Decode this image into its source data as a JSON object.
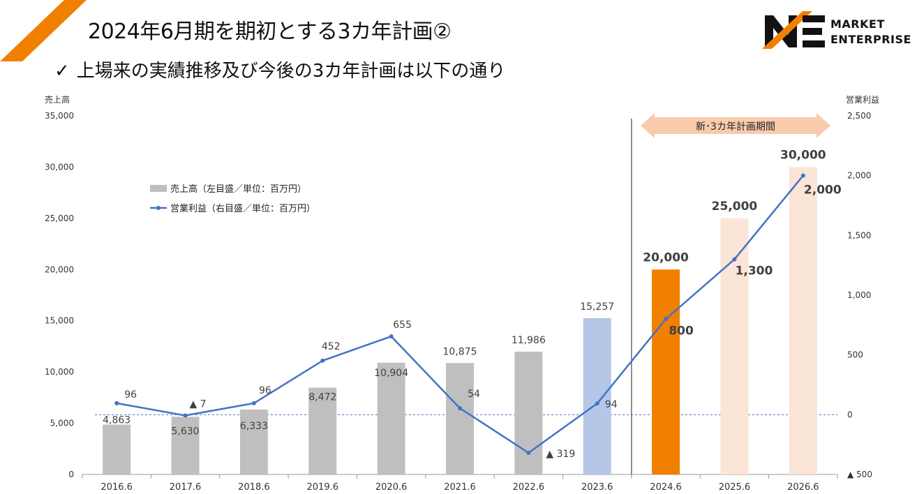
{
  "header": {
    "title": "2024年6月期を期初とする3カ年計画②",
    "subtitle_check": "✓",
    "subtitle": "上場来の実績推移及び今後の3カ年計画は以下の通り"
  },
  "logo": {
    "line1": "MARKET",
    "line2": "ENTERPRISE",
    "icon": "market-enterprise-logo",
    "color_orange": "#f28000",
    "color_black": "#111111"
  },
  "corner_stripe": {
    "color": "#f28000"
  },
  "chart_data": {
    "type": "bar+line",
    "categories": [
      "2016.6",
      "2017.6",
      "2018.6",
      "2019.6",
      "2020.6",
      "2021.6",
      "2022.6",
      "2023.6",
      "2024.6",
      "2025.6",
      "2026.6"
    ],
    "left_axis": {
      "title": "売上高",
      "ylim": [
        0,
        35000
      ],
      "ticks": [
        0,
        5000,
        10000,
        15000,
        20000,
        25000,
        30000,
        35000
      ],
      "tick_labels": [
        "0",
        "5,000",
        "10,000",
        "15,000",
        "20,000",
        "25,000",
        "30,000",
        "35,000"
      ]
    },
    "right_axis": {
      "title": "営業利益",
      "ylim": [
        -500,
        2500
      ],
      "ticks": [
        -500,
        0,
        500,
        1000,
        1500,
        2000,
        2500
      ],
      "tick_labels": [
        "▲ 500",
        "0",
        "500",
        "1,000",
        "1,500",
        "2,000",
        "2,500"
      ]
    },
    "series": [
      {
        "name": "売上高（左目盛／単位：百万円）",
        "kind": "bar",
        "axis": "left",
        "values": [
          4863,
          5630,
          6333,
          8472,
          10904,
          10875,
          11986,
          15257,
          20000,
          25000,
          30000
        ],
        "labels": [
          "4,863",
          "5,630",
          "6,333",
          "8,472",
          "10,904",
          "10,875",
          "11,986",
          "15,257",
          "20,000",
          "25,000",
          "30,000"
        ],
        "colors": [
          "#bfbfbf",
          "#bfbfbf",
          "#bfbfbf",
          "#bfbfbf",
          "#bfbfbf",
          "#bfbfbf",
          "#bfbfbf",
          "#b4c7e7",
          "#f28000",
          "#fbe5d6",
          "#fbe5d6"
        ]
      },
      {
        "name": "営業利益（右目盛／単位：百万円）",
        "kind": "line",
        "axis": "right",
        "color": "#4472c4",
        "values": [
          96,
          -7,
          96,
          452,
          655,
          54,
          -319,
          94,
          800,
          1300,
          2000
        ],
        "labels": [
          "96",
          "▲ 7",
          "96",
          "452",
          "655",
          "54",
          "▲ 319",
          "94",
          "800",
          "1,300",
          "2,000"
        ]
      }
    ],
    "plan_period": {
      "label": "新･3カ年計画期間",
      "start_category": "2024.6",
      "arrow_color": "#f8cbad"
    },
    "zero_line_color": "#4472c4"
  }
}
